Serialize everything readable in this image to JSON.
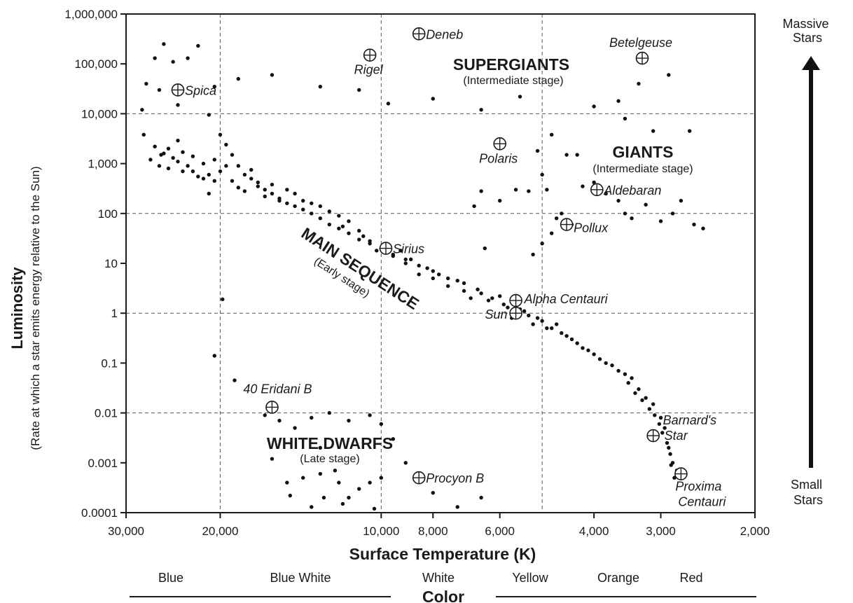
{
  "chart_data": {
    "type": "scatter",
    "title": "",
    "xlabel": "Surface Temperature (K)",
    "ylabel": "Luminosity",
    "ylabel_sub": "(Rate at which a star emits energy relative to the Sun)",
    "x_scale": "log-reversed",
    "y_scale": "log",
    "xlim": [
      30000,
      2000
    ],
    "ylim": [
      0.0001,
      1000000
    ],
    "grid": "dashed",
    "x_ticks": [
      {
        "value": 30000,
        "label": "30,000"
      },
      {
        "value": 20000,
        "label": "20,000"
      },
      {
        "value": 10000,
        "label": "10,000"
      },
      {
        "value": 8000,
        "label": "8,000"
      },
      {
        "value": 6000,
        "label": "6,000"
      },
      {
        "value": 4000,
        "label": "4,000"
      },
      {
        "value": 3000,
        "label": "3,000"
      },
      {
        "value": 2000,
        "label": "2,000"
      }
    ],
    "y_ticks": [
      {
        "value": 1000000,
        "label": "1,000,000"
      },
      {
        "value": 100000,
        "label": "100,000"
      },
      {
        "value": 10000,
        "label": "10,000"
      },
      {
        "value": 1000,
        "label": "1,000"
      },
      {
        "value": 100,
        "label": "100"
      },
      {
        "value": 10,
        "label": "10"
      },
      {
        "value": 1,
        "label": "1"
      },
      {
        "value": 0.1,
        "label": "0.1"
      },
      {
        "value": 0.01,
        "label": "0.01"
      },
      {
        "value": 0.001,
        "label": "0.001"
      },
      {
        "value": 0.0001,
        "label": "0.0001"
      }
    ],
    "x_gridlines": [
      20000,
      10000,
      5000
    ],
    "y_gridlines": [
      10000,
      100,
      1,
      0.01
    ],
    "regions": [
      {
        "name": "SUPERGIANTS",
        "stage": "(Intermediate stage)"
      },
      {
        "name": "GIANTS",
        "stage": "(Intermediate stage)"
      },
      {
        "name": "MAIN SEQUENCE",
        "stage": "(Early stage)"
      },
      {
        "name": "WHITE DWARFS",
        "stage": "(Late stage)"
      }
    ],
    "named_stars": [
      {
        "name": "Deneb",
        "temp": 8500,
        "lum": 400000
      },
      {
        "name": "Rigel",
        "temp": 10500,
        "lum": 150000
      },
      {
        "name": "Betelgeuse",
        "temp": 3250,
        "lum": 130000
      },
      {
        "name": "Spica",
        "temp": 24000,
        "lum": 30000
      },
      {
        "name": "Polaris",
        "temp": 6000,
        "lum": 2500
      },
      {
        "name": "Aldebaran",
        "temp": 3950,
        "lum": 300
      },
      {
        "name": "Pollux",
        "temp": 4500,
        "lum": 60
      },
      {
        "name": "Sirius",
        "temp": 9800,
        "lum": 20
      },
      {
        "name": "Alpha Centauri",
        "temp": 5600,
        "lum": 1.8
      },
      {
        "name": "Sun",
        "temp": 5600,
        "lum": 1
      },
      {
        "name": "40 Eridani B",
        "temp": 16000,
        "lum": 0.013
      },
      {
        "name": "Procyon B",
        "temp": 8500,
        "lum": 0.0005
      },
      {
        "name": "Barnard's Star",
        "temp": 3100,
        "lum": 0.0035
      },
      {
        "name": "Proxima Centauri",
        "temp": 2750,
        "lum": 0.0006
      }
    ],
    "points": [
      [
        28000,
        12000
      ],
      [
        27500,
        40000
      ],
      [
        26500,
        130000
      ],
      [
        25500,
        250000
      ],
      [
        24500,
        110000
      ],
      [
        23000,
        130000
      ],
      [
        22000,
        230000
      ],
      [
        27800,
        3800
      ],
      [
        26500,
        2200
      ],
      [
        25500,
        1600
      ],
      [
        25000,
        800
      ],
      [
        24500,
        1300
      ],
      [
        24000,
        2900
      ],
      [
        23500,
        700
      ],
      [
        22500,
        700
      ],
      [
        21500,
        500
      ],
      [
        20500,
        450
      ],
      [
        21000,
        250
      ],
      [
        20000,
        3800
      ],
      [
        19500,
        2400
      ],
      [
        19000,
        1500
      ],
      [
        18500,
        900
      ],
      [
        18000,
        600
      ],
      [
        17500,
        500
      ],
      [
        17000,
        350
      ],
      [
        16500,
        300
      ],
      [
        16000,
        250
      ],
      [
        15500,
        180
      ],
      [
        15000,
        160
      ],
      [
        14500,
        140
      ],
      [
        14000,
        120
      ],
      [
        13500,
        100
      ],
      [
        13000,
        80
      ],
      [
        12500,
        60
      ],
      [
        12000,
        50
      ],
      [
        11500,
        40
      ],
      [
        11000,
        30
      ],
      [
        10500,
        25
      ],
      [
        10000,
        20
      ],
      [
        9500,
        15
      ],
      [
        9000,
        12
      ],
      [
        8500,
        9
      ],
      [
        8000,
        7
      ],
      [
        7500,
        5
      ],
      [
        7000,
        4
      ],
      [
        6500,
        2.5
      ],
      [
        6200,
        2
      ],
      [
        5900,
        1.5
      ],
      [
        5500,
        1.2
      ],
      [
        5300,
        0.9
      ],
      [
        5000,
        0.7
      ],
      [
        4800,
        0.5
      ],
      [
        4600,
        0.4
      ],
      [
        4400,
        0.3
      ],
      [
        4200,
        0.2
      ],
      [
        4000,
        0.15
      ],
      [
        3800,
        0.1
      ],
      [
        3600,
        0.07
      ],
      [
        3400,
        0.05
      ],
      [
        3300,
        0.03
      ],
      [
        3200,
        0.02
      ],
      [
        3100,
        0.015
      ],
      [
        3000,
        0.008
      ],
      [
        2950,
        0.005
      ],
      [
        2900,
        0.002
      ],
      [
        2850,
        0.001
      ],
      [
        2800,
        0.0007
      ],
      [
        27000,
        1200
      ],
      [
        26000,
        900
      ],
      [
        25800,
        1500
      ],
      [
        25000,
        2000
      ],
      [
        24000,
        1100
      ],
      [
        23500,
        1700
      ],
      [
        23000,
        900
      ],
      [
        22500,
        1400
      ],
      [
        22000,
        550
      ],
      [
        21500,
        1000
      ],
      [
        21000,
        600
      ],
      [
        20500,
        1200
      ],
      [
        20000,
        700
      ],
      [
        19500,
        900
      ],
      [
        19000,
        450
      ],
      [
        18500,
        330
      ],
      [
        18000,
        280
      ],
      [
        17500,
        750
      ],
      [
        17000,
        420
      ],
      [
        16500,
        220
      ],
      [
        16000,
        380
      ],
      [
        15500,
        200
      ],
      [
        15000,
        300
      ],
      [
        14500,
        250
      ],
      [
        14000,
        180
      ],
      [
        13500,
        160
      ],
      [
        13000,
        140
      ],
      [
        12500,
        110
      ],
      [
        12000,
        90
      ],
      [
        11800,
        55
      ],
      [
        11500,
        70
      ],
      [
        11000,
        45
      ],
      [
        10800,
        35
      ],
      [
        10500,
        28
      ],
      [
        10200,
        18
      ],
      [
        9800,
        22
      ],
      [
        9500,
        14
      ],
      [
        9200,
        18
      ],
      [
        9000,
        10
      ],
      [
        8800,
        12
      ],
      [
        8500,
        6
      ],
      [
        8200,
        8
      ],
      [
        8000,
        5
      ],
      [
        7800,
        6
      ],
      [
        7500,
        3.5
      ],
      [
        7200,
        4.5
      ],
      [
        7000,
        2.8
      ],
      [
        6800,
        2
      ],
      [
        6600,
        3
      ],
      [
        6300,
        1.8
      ],
      [
        6000,
        2.2
      ],
      [
        5800,
        1.3
      ],
      [
        5700,
        0.8
      ],
      [
        5400,
        1.1
      ],
      [
        5200,
        0.6
      ],
      [
        5100,
        0.8
      ],
      [
        4900,
        0.5
      ],
      [
        4700,
        0.6
      ],
      [
        4500,
        0.35
      ],
      [
        4300,
        0.25
      ],
      [
        4100,
        0.18
      ],
      [
        3900,
        0.12
      ],
      [
        3700,
        0.09
      ],
      [
        3500,
        0.06
      ],
      [
        3450,
        0.04
      ],
      [
        3350,
        0.025
      ],
      [
        3250,
        0.018
      ],
      [
        3150,
        0.012
      ],
      [
        3080,
        0.009
      ],
      [
        3020,
        0.006
      ],
      [
        2980,
        0.004
      ],
      [
        2920,
        0.0025
      ],
      [
        2880,
        0.0015
      ],
      [
        2870,
        0.0009
      ],
      [
        2830,
        0.0005
      ],
      [
        26000,
        30000
      ],
      [
        24000,
        15000
      ],
      [
        21000,
        9500
      ],
      [
        20500,
        35000
      ],
      [
        18500,
        50000
      ],
      [
        16000,
        60000
      ],
      [
        13000,
        35000
      ],
      [
        11000,
        30000
      ],
      [
        9700,
        16000
      ],
      [
        8000,
        20000
      ],
      [
        6500,
        12000
      ],
      [
        5500,
        22000
      ],
      [
        4000,
        14000
      ],
      [
        3600,
        18000
      ],
      [
        3300,
        40000
      ],
      [
        2900,
        60000
      ],
      [
        3500,
        8000
      ],
      [
        3100,
        4500
      ],
      [
        2650,
        4500
      ],
      [
        4800,
        3800
      ],
      [
        4500,
        1500
      ],
      [
        4300,
        1500
      ],
      [
        5000,
        600
      ],
      [
        5300,
        280
      ],
      [
        6700,
        140
      ],
      [
        6500,
        280
      ],
      [
        6000,
        180
      ],
      [
        5600,
        300
      ],
      [
        5100,
        1800
      ],
      [
        4900,
        300
      ],
      [
        4600,
        100
      ],
      [
        4400,
        60
      ],
      [
        4200,
        350
      ],
      [
        4000,
        420
      ],
      [
        3800,
        250
      ],
      [
        3600,
        180
      ],
      [
        3500,
        100
      ],
      [
        3400,
        80
      ],
      [
        3200,
        150
      ],
      [
        3000,
        70
      ],
      [
        2850,
        100
      ],
      [
        2750,
        180
      ],
      [
        2600,
        60
      ],
      [
        2500,
        50
      ],
      [
        4700,
        80
      ],
      [
        4800,
        40
      ],
      [
        5200,
        15
      ],
      [
        5000,
        25
      ],
      [
        6400,
        20
      ],
      [
        16500,
        0.009
      ],
      [
        15500,
        0.007
      ],
      [
        14500,
        0.005
      ],
      [
        13500,
        0.008
      ],
      [
        12500,
        0.01
      ],
      [
        11500,
        0.007
      ],
      [
        10500,
        0.009
      ],
      [
        10000,
        0.006
      ],
      [
        16000,
        0.0012
      ],
      [
        15000,
        0.0004
      ],
      [
        14000,
        0.0005
      ],
      [
        13000,
        0.0006
      ],
      [
        12000,
        0.0004
      ],
      [
        11500,
        0.0002
      ],
      [
        11000,
        0.0003
      ],
      [
        10500,
        0.0004
      ],
      [
        10000,
        0.0005
      ],
      [
        9500,
        0.003
      ],
      [
        9000,
        0.001
      ],
      [
        8000,
        0.00025
      ],
      [
        7200,
        0.00013
      ],
      [
        6500,
        0.0002
      ],
      [
        13500,
        0.00013
      ],
      [
        12800,
        0.0002
      ],
      [
        11800,
        0.00015
      ],
      [
        10300,
        0.00012
      ],
      [
        14800,
        0.00022
      ],
      [
        12200,
        0.0007
      ],
      [
        13000,
        0.002
      ],
      [
        20500,
        0.14
      ],
      [
        19800,
        1.9
      ],
      [
        18800,
        0.045
      ]
    ]
  },
  "side_labels": {
    "top": "Massive\nStars",
    "bottom": "Small\nStars"
  },
  "color_axis": {
    "title": "Color",
    "bands": [
      "Blue",
      "Blue White",
      "White",
      "Yellow",
      "Orange",
      "Red"
    ]
  }
}
